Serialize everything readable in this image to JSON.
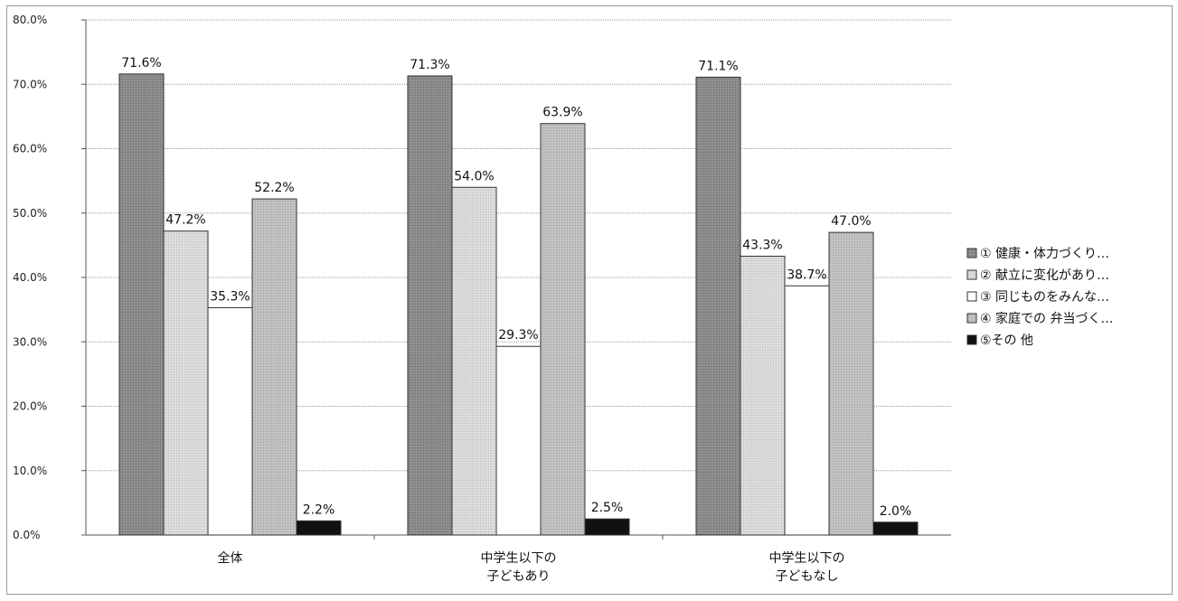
{
  "chart_data": {
    "type": "bar",
    "categories": [
      [
        "全体"
      ],
      [
        "中学生以下の",
        "子どもあり"
      ],
      [
        "中学生以下の",
        "子どもなし"
      ]
    ],
    "series": [
      {
        "name": "① 健康・体力づくり…",
        "values": [
          71.6,
          71.3,
          71.1
        ],
        "color": "#8a8a8a"
      },
      {
        "name": "② 献立に変化があり…",
        "values": [
          47.2,
          54.0,
          43.3
        ],
        "color": "#d4d4d4"
      },
      {
        "name": "③ 同じものをみんな…",
        "values": [
          35.3,
          29.3,
          38.7
        ],
        "color": "#ffffff"
      },
      {
        "name": "④ 家庭での 弁当づく…",
        "values": [
          52.2,
          63.9,
          47.0
        ],
        "color": "#bdbdbd"
      },
      {
        "name": "⑤その 他",
        "values": [
          2.2,
          2.5,
          2.0
        ],
        "color": "#111111"
      }
    ],
    "data_labels": [
      [
        "71.6%",
        "71.3%",
        "71.1%"
      ],
      [
        "47.2%",
        "54.0%",
        "43.3%"
      ],
      [
        "35.3%",
        "29.3%",
        "38.7%"
      ],
      [
        "52.2%",
        "63.9%",
        "47.0%"
      ],
      [
        "2.2%",
        "2.5%",
        "2.0%"
      ]
    ],
    "y_ticks": [
      "0.0%",
      "10.0%",
      "20.0%",
      "30.0%",
      "40.0%",
      "50.0%",
      "60.0%",
      "70.0%",
      "80.0%"
    ],
    "ylim": [
      0,
      80
    ],
    "grid": true,
    "legend_position": "right"
  }
}
